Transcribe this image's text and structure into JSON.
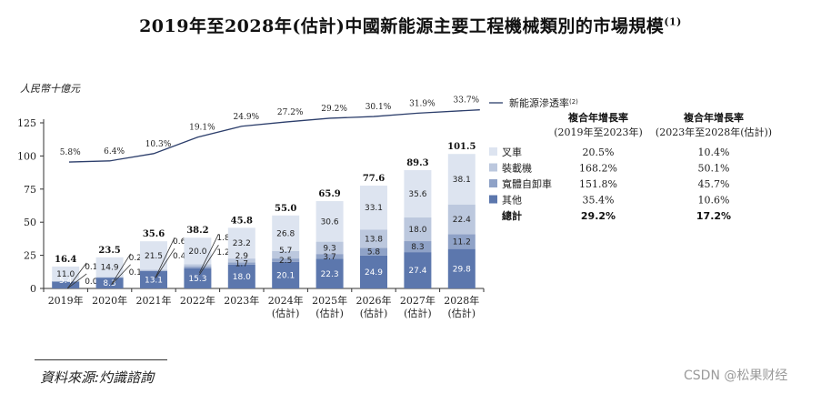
{
  "title": "2019年至2028年(估計)中國新能源主要工程機械類別的市場規模",
  "title_note": "(1)",
  "source": "資料來源:灼識諮詢",
  "watermark": "CSDN @松果财经",
  "colors": {
    "excavator": "#dde4f0",
    "loader": "#bcc8de",
    "dumper": "#8fa2c7",
    "other": "#5c77ad",
    "line": "#2c3e6b",
    "axis": "#333333"
  },
  "chart_data": {
    "type": "bar",
    "stacked": true,
    "ylabel": "人民幣十億元",
    "ylim": [
      0,
      125
    ],
    "yticks": [
      0,
      25,
      50,
      75,
      100,
      125
    ],
    "categories": [
      "2019年",
      "2020年",
      "2021年",
      "2022年",
      "2023年",
      "2024年",
      "2025年",
      "2026年",
      "2027年",
      "2028年"
    ],
    "category_sub": [
      "",
      "",
      "",
      "",
      "",
      "(估計)",
      "(估計)",
      "(估計)",
      "(估計)",
      "(估計)"
    ],
    "series": [
      {
        "name": "其他",
        "key": "other",
        "values": [
          5.4,
          8.3,
          13.1,
          15.3,
          18.0,
          20.1,
          22.3,
          24.9,
          27.4,
          29.8
        ]
      },
      {
        "name": "寬體自卸車",
        "key": "dumper",
        "values": [
          0.04,
          0.1,
          0.4,
          1.2,
          1.7,
          2.5,
          3.7,
          5.8,
          8.3,
          11.2
        ]
      },
      {
        "name": "裝載機",
        "key": "loader",
        "values": [
          0.1,
          0.2,
          0.6,
          1.8,
          2.9,
          5.7,
          9.3,
          13.8,
          18.0,
          22.4
        ]
      },
      {
        "name": "叉車",
        "key": "excavator",
        "values": [
          11.0,
          14.9,
          21.5,
          20.0,
          23.2,
          26.8,
          30.6,
          33.1,
          35.6,
          38.1
        ]
      }
    ],
    "series_labels": [
      [
        "5.4",
        "8.3",
        "13.1",
        "15.3",
        "18.0",
        "20.1",
        "22.3",
        "24.9",
        "27.4",
        "29.8"
      ],
      [
        "0.04",
        "0.1",
        "0.4",
        "1.2",
        "1.7",
        "2.5",
        "3.7",
        "5.8",
        "8.3",
        "11.2"
      ],
      [
        "0.1",
        "0.2",
        "0.6",
        "1.8",
        "2.9",
        "5.7",
        "9.3",
        "13.8",
        "18.0",
        "22.4"
      ],
      [
        "11.0",
        "14.9",
        "21.5",
        "20.0",
        "23.2",
        "26.8",
        "30.6",
        "33.1",
        "35.6",
        "38.1"
      ]
    ],
    "totals": [
      "16.4",
      "23.5",
      "35.6",
      "38.2",
      "45.8",
      "55.0",
      "65.9",
      "77.6",
      "89.3",
      "101.5"
    ],
    "penetration": {
      "name": "新能源滲透率",
      "note": "(2)",
      "values_pct": [
        5.8,
        6.4,
        10.3,
        19.1,
        24.9,
        27.2,
        29.2,
        30.1,
        31.9,
        33.7
      ],
      "labels": [
        "5.8%",
        "6.4%",
        "10.3%",
        "19.1%",
        "24.9%",
        "27.2%",
        "29.2%",
        "30.1%",
        "31.9%",
        "33.7%"
      ]
    },
    "cagr_table": {
      "headers": [
        [
          "複合年增長率",
          "(2019年至2023年)"
        ],
        [
          "複合年增長率",
          "(2023年至2028年(估計))"
        ]
      ],
      "rows": [
        {
          "label": "叉車",
          "key": "excavator",
          "a": "20.5%",
          "b": "10.4%"
        },
        {
          "label": "裝載機",
          "key": "loader",
          "a": "168.2%",
          "b": "50.1%"
        },
        {
          "label": "寬體自卸車",
          "key": "dumper",
          "a": "151.8%",
          "b": "45.7%"
        },
        {
          "label": "其他",
          "key": "other",
          "a": "35.4%",
          "b": "10.6%"
        },
        {
          "label": "總計",
          "key": "",
          "a": "29.2%",
          "b": "17.2%",
          "bold": true
        }
      ]
    }
  }
}
